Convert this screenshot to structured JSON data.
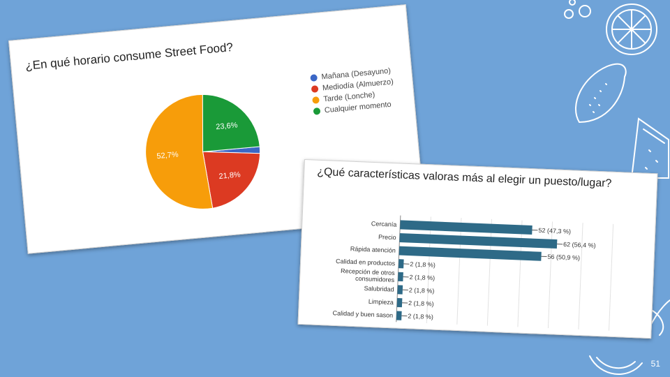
{
  "slide": {
    "page_number": "51",
    "background": "#6fa3d8"
  },
  "card1": {
    "title": "¿En qué horario consume Street Food?",
    "chart_data": {
      "type": "pie",
      "title": "¿En qué horario consume Street Food?",
      "slices": [
        {
          "label": "Mañana (Desayuno)",
          "value": 1.9,
          "color": "#3b67c6",
          "data_label": ""
        },
        {
          "label": "Mediodía (Almuerzo)",
          "value": 21.8,
          "color": "#dc3a22",
          "data_label": "21,8%"
        },
        {
          "label": "Tarde (Lonche)",
          "value": 52.7,
          "color": "#f79d0a",
          "data_label": "52,7%"
        },
        {
          "label": "Cualquier momento",
          "value": 23.6,
          "color": "#1a9a38",
          "data_label": "23,6%"
        }
      ],
      "legend_position": "right"
    }
  },
  "card2": {
    "title": "¿Qué características valoras más al elegir un puesto/lugar?",
    "chart_data": {
      "type": "bar",
      "orientation": "horizontal",
      "categories": [
        "Cercanía",
        "Precio",
        "Rápida atención",
        "Calidad en productos",
        "Recepción de otros consumidores",
        "Salubridad",
        "Limpieza",
        "Calidad y buen sason"
      ],
      "category_lines": [
        [
          "Cercanía"
        ],
        [
          "Precio"
        ],
        [
          "Rápida atención"
        ],
        [
          "Calidad en productos"
        ],
        [
          "Recepción de otros",
          "consumidores"
        ],
        [
          "Salubridad"
        ],
        [
          "Limpieza"
        ],
        [
          "Calidad y buen sason"
        ]
      ],
      "values": [
        52,
        62,
        56,
        2,
        2,
        2,
        2,
        2
      ],
      "data_labels": [
        "52 (47,3 %)",
        "62 (56,4 %)",
        "56 (50,9 %)",
        "2 (1,8 %)",
        "2 (1,8 %)",
        "2 (1,8 %)",
        "2 (1,8 %)",
        "2 (1,8 %)"
      ],
      "bar_color": "#2e6a87",
      "grid": true
    }
  }
}
